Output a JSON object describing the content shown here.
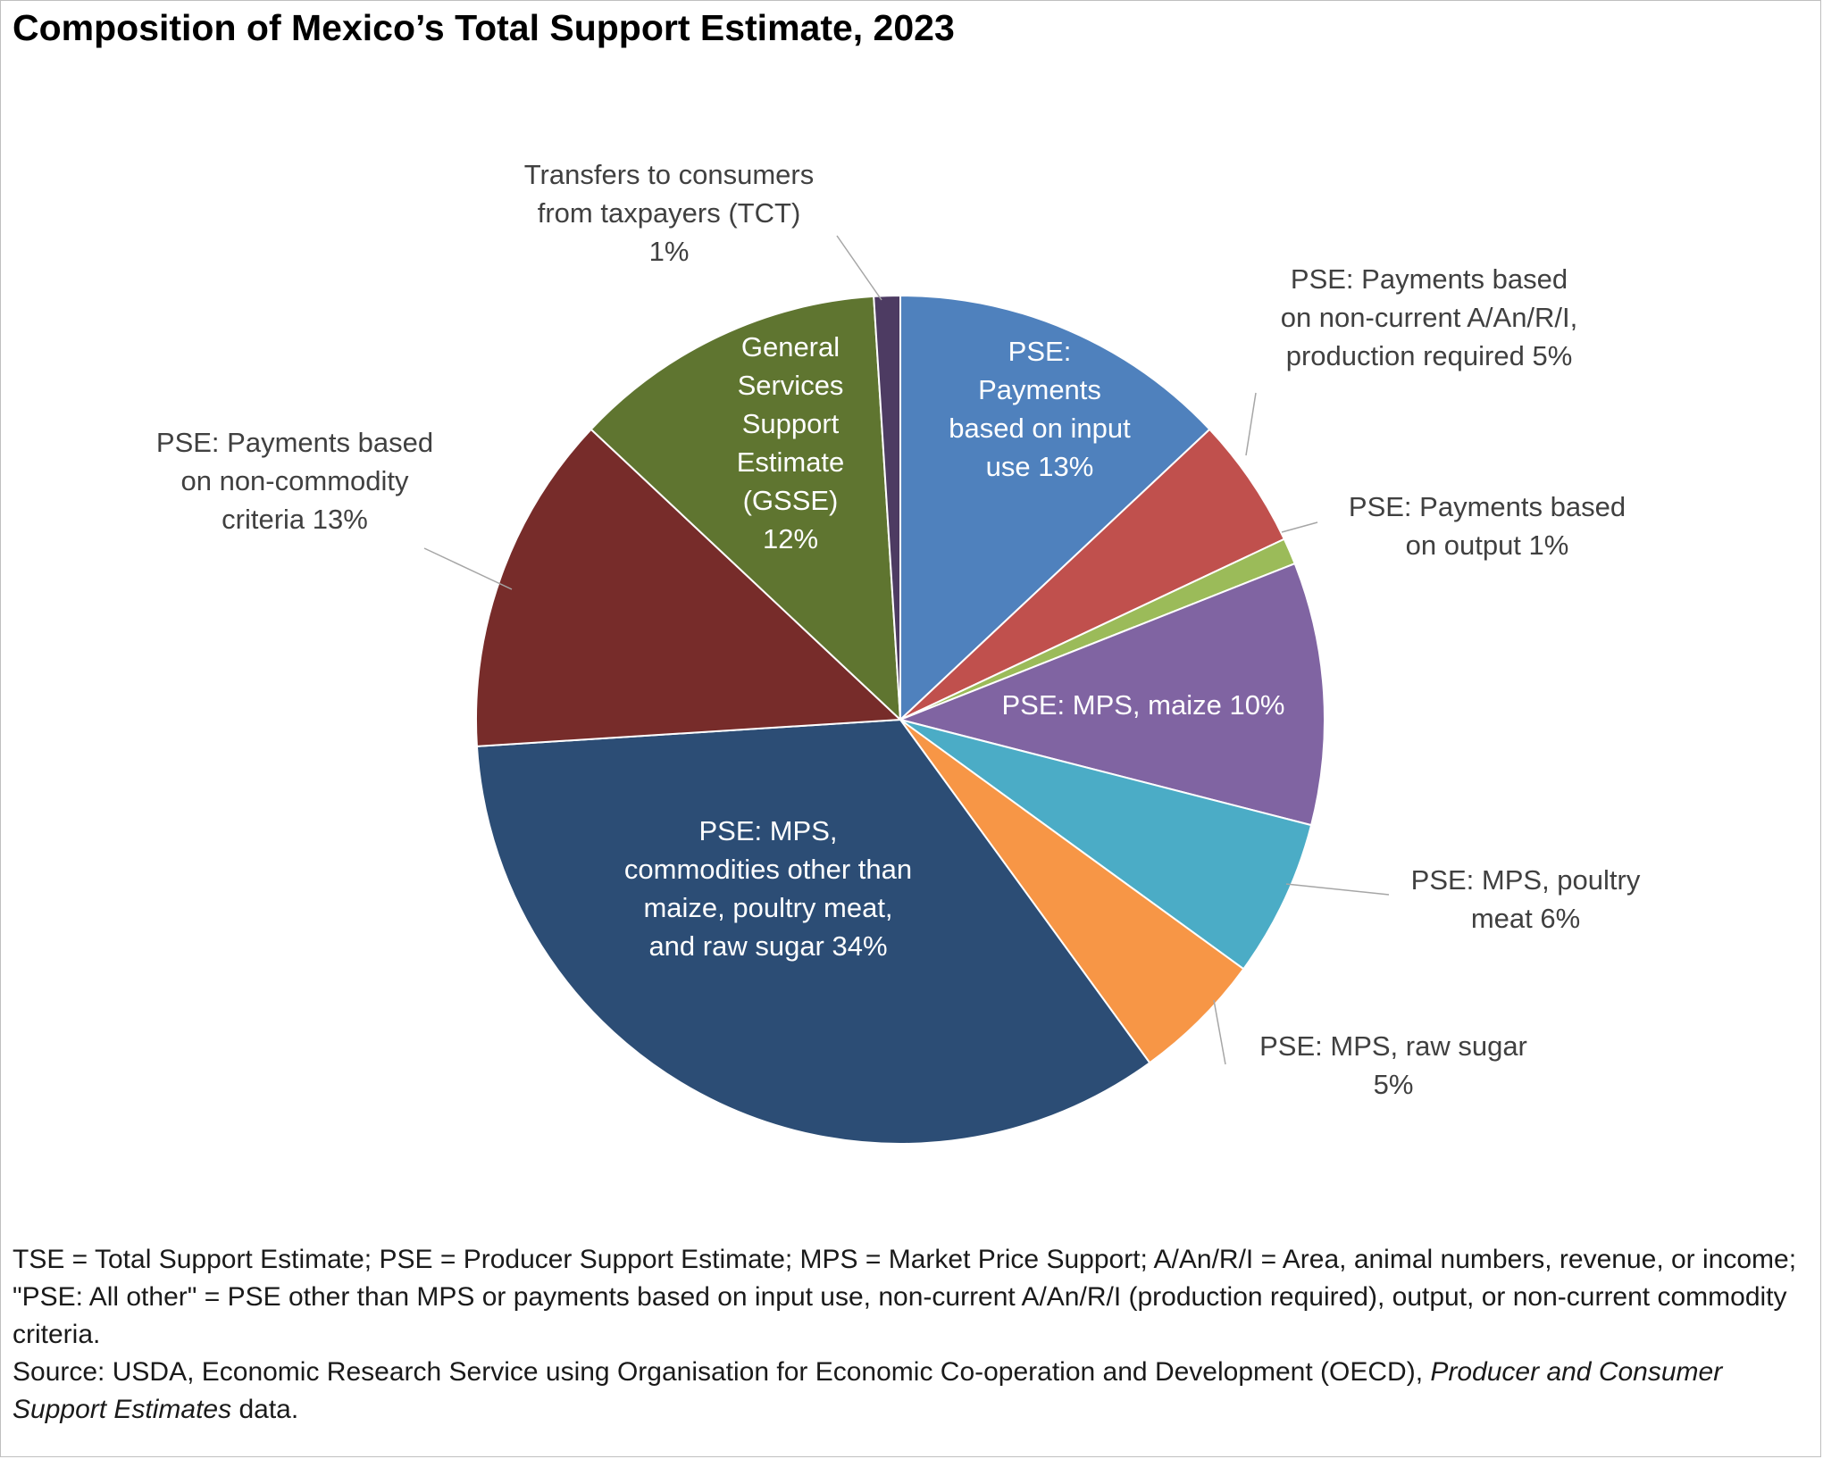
{
  "title": "Composition of Mexico’s Total Support Estimate, 2023",
  "chart_data": {
    "type": "pie",
    "title": "Composition of Mexico’s Total Support Estimate, 2023",
    "unit": "%",
    "slices": [
      {
        "label": "PSE: Payments based on input use",
        "value": 13,
        "value_text": "13%",
        "color": "#4f81bd"
      },
      {
        "label": "PSE: Payments based on non-current A/An/R/I, production required",
        "value": 5,
        "value_text": "5%",
        "color": "#c0504d"
      },
      {
        "label": "PSE: Payments based on output",
        "value": 1,
        "value_text": "1%",
        "color": "#9bbb59"
      },
      {
        "label": "PSE: MPS, maize",
        "value": 10,
        "value_text": "10%",
        "color": "#8064a2"
      },
      {
        "label": "PSE: MPS, poultry meat",
        "value": 6,
        "value_text": "6%",
        "color": "#4bacc6"
      },
      {
        "label": "PSE: MPS, raw sugar",
        "value": 5,
        "value_text": "5%",
        "color": "#f79646"
      },
      {
        "label": "PSE: MPS, commodities other than maize, poultry meat, and raw sugar",
        "value": 34,
        "value_text": "34%",
        "color": "#2c4d75"
      },
      {
        "label": "PSE: Payments based on non-commodity criteria",
        "value": 13,
        "value_text": "13%",
        "color": "#772c2a"
      },
      {
        "label": "General Services Support Estimate (GSSE)",
        "value": 12,
        "value_text": "12%",
        "color": "#5f7530"
      },
      {
        "label": "Transfers to consumers from taxpayers (TCT)",
        "value": 1,
        "value_text": "1%",
        "color": "#4d3b62"
      }
    ]
  },
  "footnote": {
    "line1": "TSE = Total Support Estimate; PSE = Producer Support Estimate; MPS = Market Price Support; A/An/R/I = Area, animal numbers, revenue, or income; \"PSE: All other\" = PSE other than MPS or payments based on input use, non-current A/An/R/I (production required), output, or non-current commodity criteria.",
    "source_prefix": "Source: USDA, Economic Research Service using Organisation for Economic Co-operation and Development (OECD), ",
    "source_title": "Producer and Consumer Support Estimates",
    "source_suffix": " data."
  }
}
